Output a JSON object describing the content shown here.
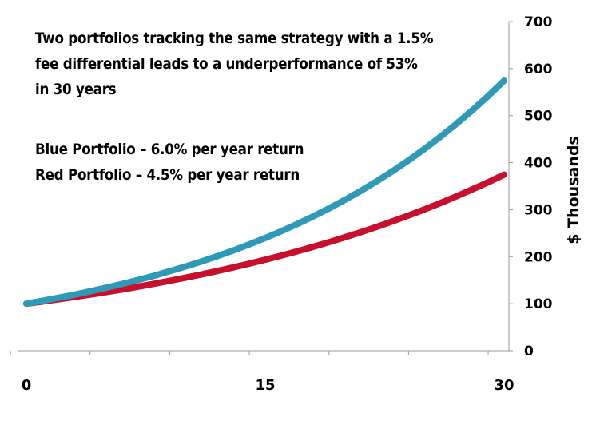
{
  "chart_data": {
    "type": "line",
    "title": "",
    "xlabel": "",
    "ylabel": "$ Thousands",
    "xlim": [
      0,
      30
    ],
    "ylim": [
      0,
      700
    ],
    "x_ticks": [
      0,
      15,
      30
    ],
    "y_ticks": [
      0,
      100,
      200,
      300,
      400,
      500,
      600,
      700
    ],
    "grid": false,
    "y_axis_position": "right",
    "series": [
      {
        "color": "#2E9AB6",
        "x": [
          0,
          1,
          2,
          3,
          4,
          5,
          6,
          7,
          8,
          9,
          10,
          11,
          12,
          13,
          14,
          15,
          16,
          17,
          18,
          19,
          20,
          21,
          22,
          23,
          24,
          25,
          26,
          27,
          28,
          29,
          30
        ],
        "values": [
          100,
          106.0,
          112.4,
          119.1,
          126.2,
          133.8,
          141.9,
          150.4,
          159.4,
          169.0,
          179.1,
          189.8,
          201.2,
          213.3,
          226.1,
          239.7,
          254.0,
          269.3,
          285.4,
          302.6,
          320.7,
          340.0,
          360.4,
          382.0,
          404.9,
          429.2,
          455.0,
          482.3,
          511.2,
          541.9,
          574.3
        ]
      },
      {
        "color": "#C8102E",
        "x": [
          0,
          1,
          2,
          3,
          4,
          5,
          6,
          7,
          8,
          9,
          10,
          11,
          12,
          13,
          14,
          15,
          16,
          17,
          18,
          19,
          20,
          21,
          22,
          23,
          24,
          25,
          26,
          27,
          28,
          29,
          30
        ],
        "values": [
          100,
          104.5,
          109.2,
          114.1,
          119.3,
          124.6,
          130.2,
          136.1,
          142.2,
          148.6,
          155.3,
          162.3,
          169.6,
          177.2,
          185.2,
          193.5,
          202.2,
          211.3,
          220.8,
          230.7,
          241.2,
          252.0,
          263.3,
          275.2,
          287.6,
          300.5,
          314.0,
          328.2,
          343.0,
          358.4,
          374.5
        ]
      }
    ],
    "annotations": [
      "Two portfolios tracking the same strategy with a 1.5% fee differential leads to a underperformance of  53% in 30 years",
      "Blue Portfolio – 6.0% per year return",
      "Red Portfolio – 4.5% per year return"
    ]
  },
  "text": {
    "summary_lines": [
      "Two portfolios tracking the same strategy with a 1.5%",
      "fee differential leads to a underperformance of  53%",
      "in 30 years"
    ],
    "blue_label": "Blue Portfolio – 6.0% per year return",
    "red_label": "Red Portfolio – 4.5% per year return"
  }
}
